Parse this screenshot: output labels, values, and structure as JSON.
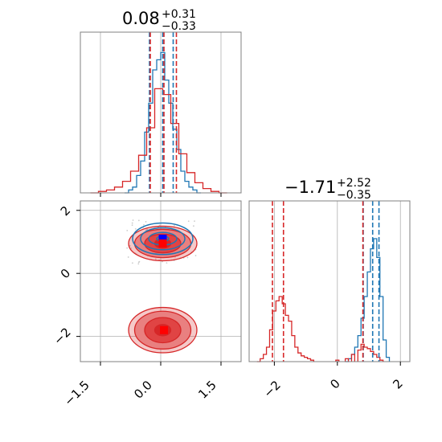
{
  "colors": {
    "blue": "#1f77b4",
    "red": "#d62728",
    "grid": "#b0b0b0",
    "axis": "#808080",
    "marker_blue": "#0000ff",
    "marker_red": "#ff0000"
  },
  "chart_data": [
    {
      "type": "histogram",
      "panel": "top-left marginal",
      "title": {
        "main": "0.08",
        "sup": "+0.31",
        "sub": "−0.33"
      },
      "x_range": [
        -2.0,
        2.0
      ],
      "grid": true,
      "series": [
        {
          "color": "blue",
          "bin_centers": [
            -0.85,
            -0.75,
            -0.65,
            -0.55,
            -0.45,
            -0.35,
            -0.25,
            -0.15,
            -0.05,
            0.05,
            0.15,
            0.25,
            0.35,
            0.45,
            0.55,
            0.65,
            0.75,
            0.85,
            0.95
          ],
          "counts": [
            0,
            0.02,
            0.04,
            0.12,
            0.22,
            0.42,
            0.62,
            0.85,
            0.92,
            0.97,
            0.78,
            0.62,
            0.44,
            0.3,
            0.15,
            0.08,
            0.04,
            0.02,
            0
          ]
        },
        {
          "color": "red",
          "bin_centers": [
            -1.65,
            -1.45,
            -1.25,
            -1.05,
            -0.85,
            -0.65,
            -0.45,
            -0.25,
            -0.05,
            0.15,
            0.35,
            0.55,
            0.75,
            0.95,
            1.15,
            1.35,
            1.55
          ],
          "counts": [
            0,
            0.01,
            0.02,
            0.04,
            0.08,
            0.15,
            0.26,
            0.45,
            0.72,
            0.68,
            0.48,
            0.27,
            0.14,
            0.07,
            0.03,
            0.01,
            0
          ]
        }
      ],
      "quantile_lines": {
        "blue": [
          -0.28,
          0.31
        ],
        "red": [
          -0.26,
          0.39
        ]
      },
      "median_lines": {
        "blue": 0.05,
        "red": 0.08
      }
    },
    {
      "type": "histogram",
      "panel": "bottom-right marginal",
      "title": {
        "main": "−1.71",
        "sup": "+2.52",
        "sub": "−0.35"
      },
      "x_range": [
        -2.8,
        2.3
      ],
      "grid": true,
      "series": [
        {
          "color": "blue",
          "bin_centers": [
            0.3,
            0.4,
            0.5,
            0.6,
            0.7,
            0.8,
            0.9,
            1.0,
            1.1,
            1.2,
            1.3,
            1.4,
            1.5,
            1.6
          ],
          "counts": [
            0,
            0.02,
            0.05,
            0.1,
            0.18,
            0.3,
            0.45,
            0.62,
            0.78,
            0.85,
            0.72,
            0.45,
            0.15,
            0.03
          ]
        },
        {
          "color": "red",
          "bin_centers": [
            -2.5,
            -2.4,
            -2.3,
            -2.2,
            -2.1,
            -2.0,
            -1.9,
            -1.8,
            -1.7,
            -1.6,
            -1.5,
            -1.4,
            -1.3,
            -1.2,
            -1.1,
            -1.0,
            -0.9,
            -0.8,
            0.0,
            0.3,
            0.5,
            0.7,
            0.8,
            0.9,
            1.0,
            1.1,
            1.2,
            1.3,
            1.4
          ],
          "counts": [
            0,
            0.02,
            0.05,
            0.1,
            0.22,
            0.35,
            0.42,
            0.45,
            0.4,
            0.32,
            0.28,
            0.18,
            0.1,
            0.06,
            0.04,
            0.03,
            0.02,
            0.01,
            0.01,
            0.02,
            0.05,
            0.08,
            0.12,
            0.1,
            0.09,
            0.07,
            0.05,
            0.03,
            0.01
          ]
        }
      ],
      "quantile_lines": {
        "blue": [
          0.82,
          1.32
        ],
        "red": [
          -2.06,
          0.81
        ]
      },
      "median_lines": {
        "blue": 1.12,
        "red": -1.71
      }
    },
    {
      "type": "contour",
      "panel": "bottom-left joint",
      "x_range": [
        -2.0,
        2.0
      ],
      "y_range": [
        -2.8,
        2.3
      ],
      "grid": true,
      "blue_cluster": {
        "center": [
          0.05,
          1.1
        ],
        "rx": [
          0.15,
          0.35,
          0.55,
          0.75
        ],
        "ry": [
          0.08,
          0.2,
          0.35,
          0.5
        ]
      },
      "red_clusters": [
        {
          "center": [
            0.05,
            0.95
          ],
          "rx": [
            0.2,
            0.45,
            0.7,
            0.85
          ],
          "ry": [
            0.15,
            0.3,
            0.45,
            0.55
          ]
        },
        {
          "center": [
            0.05,
            -1.8
          ],
          "rx": [
            0.2,
            0.45,
            0.7,
            0.85
          ],
          "ry": [
            0.18,
            0.4,
            0.6,
            0.72
          ]
        }
      ],
      "markers": [
        {
          "color": "marker_blue",
          "x": 0.05,
          "y": 1.1
        },
        {
          "color": "marker_red",
          "x": 0.05,
          "y": 0.95
        },
        {
          "color": "marker_red",
          "x": 0.08,
          "y": -1.8
        }
      ]
    }
  ],
  "axes": {
    "x_ticks_left": [
      "−1.5",
      "0.0",
      "1.5"
    ],
    "x_tick_values_left": [
      -1.5,
      0.0,
      1.5
    ],
    "y_ticks_left": [
      "2",
      "0",
      "−2"
    ],
    "y_tick_values_left": [
      2,
      0,
      -2
    ],
    "x_ticks_right": [
      "−2",
      "0",
      "2"
    ],
    "x_tick_values_right": [
      -2,
      0,
      2
    ]
  }
}
